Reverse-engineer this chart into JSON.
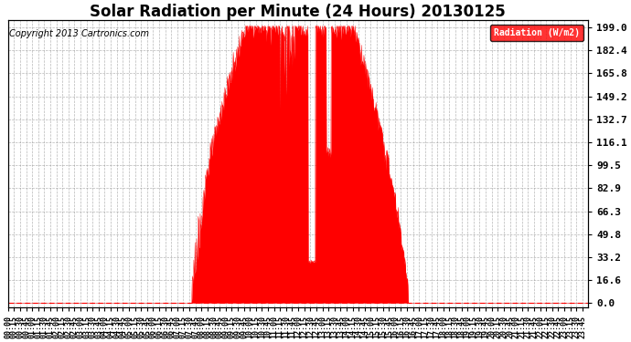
{
  "title": "Solar Radiation per Minute (24 Hours) 20130125",
  "copyright": "Copyright 2013 Cartronics.com",
  "bg_color": "#ffffff",
  "fill_color": "#ff0000",
  "line_color": "#ff0000",
  "grid_color": "#888888",
  "yticks": [
    0.0,
    16.6,
    33.2,
    49.8,
    66.3,
    82.9,
    99.5,
    116.1,
    132.7,
    149.2,
    165.8,
    182.4,
    199.0
  ],
  "ymax": 204.0,
  "ymin": -3.0,
  "dashed_zero_color": "#ff0000",
  "legend_bg": "#ff0000",
  "legend_text": "Radiation (W/m2)",
  "legend_text_color": "#ffffff",
  "title_fontsize": 12,
  "copyright_fontsize": 7,
  "tick_fontsize": 6,
  "ytick_fontsize": 8,
  "sunrise_minute": 455,
  "sunset_minute": 993,
  "peak_value": 199.0,
  "peak_minute": 695
}
